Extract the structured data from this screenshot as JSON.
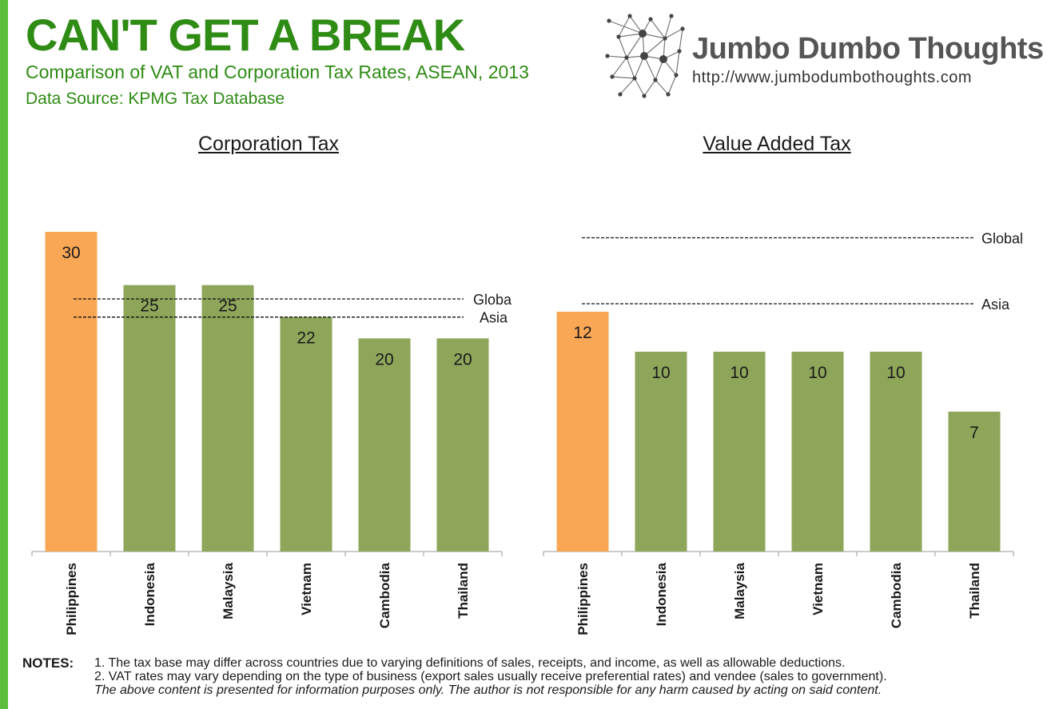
{
  "header": {
    "title": "CAN'T GET A BREAK",
    "subtitle": "Comparison of VAT and Corporation Tax Rates, ASEAN, 2013",
    "source": "Data Source: KPMG Tax Database"
  },
  "brand": {
    "name": "Jumbo Dumbo Thoughts",
    "url": "http://www.jumbodumbothoughts.com",
    "logo_icon": "network-nodes-icon"
  },
  "colors": {
    "highlight": "#f9a755",
    "bar": "#8ea65a",
    "title_green": "#2e8b14",
    "accent_bar": "#5cbf3c"
  },
  "chart_data": [
    {
      "type": "bar",
      "title": "Corporation Tax",
      "categories": [
        "Philippines",
        "Indonesia",
        "Malaysia",
        "Vietnam",
        "Cambodia",
        "Thailand"
      ],
      "values": [
        30,
        25,
        25,
        22,
        20,
        20
      ],
      "highlight_index": 0,
      "ylim": [
        0,
        30
      ],
      "reference_lines": [
        {
          "label": "Global",
          "value": 23.7
        },
        {
          "label": "Asia",
          "value": 22.0
        }
      ],
      "grid": false,
      "data_labels": true
    },
    {
      "type": "bar",
      "title": "Value Added Tax",
      "categories": [
        "Philippines",
        "Indonesia",
        "Malaysia",
        "Vietnam",
        "Cambodia",
        "Thailand"
      ],
      "values": [
        12,
        10,
        10,
        10,
        10,
        7
      ],
      "highlight_index": 0,
      "ylim": [
        0,
        16
      ],
      "reference_lines": [
        {
          "label": "Global",
          "value": 15.7
        },
        {
          "label": "Asia",
          "value": 12.4
        }
      ],
      "grid": false,
      "data_labels": true
    }
  ],
  "notes": {
    "label": "NOTES:",
    "items": [
      "1. The tax base may differ across countries due to varying definitions of sales, receipts, and income, as well as allowable deductions.",
      "2. VAT rates may vary depending on the type of business (export sales usually receive preferential rates) and vendee (sales to government)."
    ],
    "disclaimer": "The above content is presented for information purposes only. The author is not responsible for any harm caused by acting on said content."
  }
}
